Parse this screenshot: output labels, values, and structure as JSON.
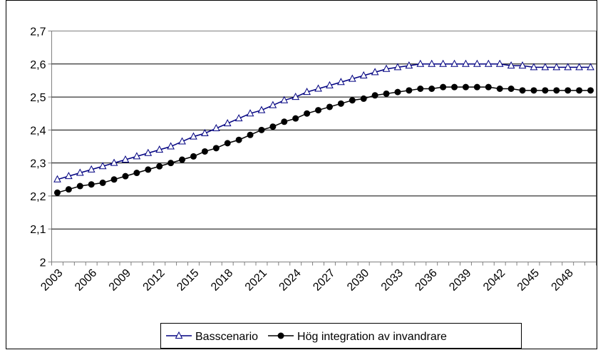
{
  "chart_data": {
    "type": "line",
    "categories": [
      "2003",
      null,
      null,
      "2006",
      null,
      null,
      "2009",
      null,
      null,
      "2012",
      null,
      null,
      "2015",
      null,
      null,
      "2018",
      null,
      null,
      "2021",
      null,
      null,
      "2024",
      null,
      null,
      "2027",
      null,
      null,
      "2030",
      null,
      null,
      "2033",
      null,
      null,
      "2036",
      null,
      null,
      "2039",
      null,
      null,
      "2042",
      null,
      null,
      "2045",
      null,
      null,
      "2048",
      null,
      null
    ],
    "series": [
      {
        "name": "Basscenario",
        "color": "#000080",
        "marker": "triangle",
        "values": [
          2.25,
          2.26,
          2.27,
          2.28,
          2.29,
          2.3,
          2.31,
          2.32,
          2.33,
          2.34,
          2.35,
          2.365,
          2.38,
          2.39,
          2.405,
          2.42,
          2.435,
          2.45,
          2.46,
          2.475,
          2.49,
          2.5,
          2.515,
          2.525,
          2.535,
          2.545,
          2.555,
          2.565,
          2.575,
          2.585,
          2.59,
          2.595,
          2.6,
          2.6,
          2.6,
          2.6,
          2.6,
          2.6,
          2.6,
          2.6,
          2.595,
          2.595,
          2.59,
          2.59,
          2.59,
          2.59,
          2.59,
          2.59
        ]
      },
      {
        "name": "Hög integration av invandrare",
        "color": "#000000",
        "marker": "circle",
        "values": [
          2.21,
          2.22,
          2.23,
          2.235,
          2.24,
          2.25,
          2.26,
          2.27,
          2.28,
          2.29,
          2.3,
          2.31,
          2.32,
          2.335,
          2.345,
          2.36,
          2.37,
          2.385,
          2.4,
          2.41,
          2.425,
          2.435,
          2.45,
          2.46,
          2.47,
          2.48,
          2.49,
          2.495,
          2.505,
          2.51,
          2.515,
          2.52,
          2.525,
          2.525,
          2.53,
          2.53,
          2.53,
          2.53,
          2.53,
          2.525,
          2.525,
          2.52,
          2.52,
          2.52,
          2.52,
          2.52,
          2.52,
          2.52
        ]
      }
    ],
    "ylim": [
      2,
      2.7
    ],
    "yticks": [
      2,
      {
        "value": 2.1,
        "label": "2,1"
      },
      {
        "value": 2.2,
        "label": "2,2"
      },
      {
        "value": 2.3,
        "label": "2,3"
      },
      {
        "value": 2.4,
        "label": "2,4"
      },
      {
        "value": 2.5,
        "label": "2,5"
      },
      {
        "value": 2.6,
        "label": "2,6"
      },
      {
        "value": 2.7,
        "label": "2,7"
      }
    ],
    "grid": true,
    "legend": "bottom"
  }
}
